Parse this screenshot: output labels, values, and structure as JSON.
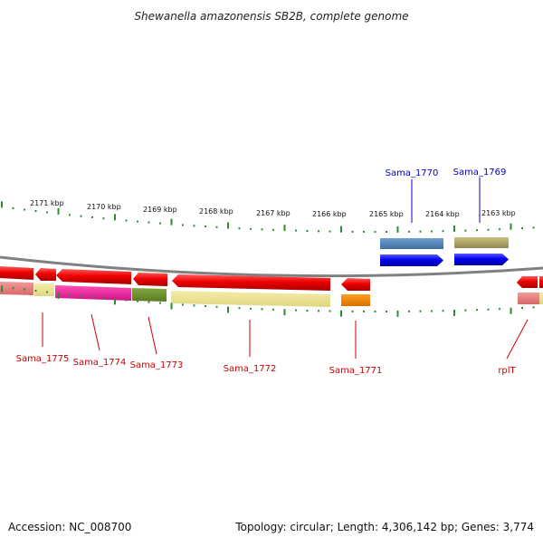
{
  "title": "Shewanella amazonensis SB2B, complete genome",
  "footer": {
    "accession": "Accession: NC_008700",
    "topology": "Topology: circular; Length: 4,306,142 bp; Genes: 3,774"
  },
  "kbp_labels": [
    "2171 kbp",
    "2170 kbp",
    "2169 kbp",
    "2168 kbp",
    "2167 kbp",
    "2166 kbp",
    "2165 kbp",
    "2164 kbp",
    "2163 kbp"
  ],
  "genes_forward": [
    {
      "name": "Sama_1770",
      "color": "#0000ee"
    },
    {
      "name": "Sama_1769",
      "color": "#0000ee"
    }
  ],
  "genes_reverse": [
    {
      "name": "Sama_1775",
      "color": "#cc0000"
    },
    {
      "name": "Sama_1774",
      "color": "#cc0000"
    },
    {
      "name": "Sama_1773",
      "color": "#cc0000"
    },
    {
      "name": "Sama_1772",
      "color": "#cc0000"
    },
    {
      "name": "Sama_1771",
      "color": "#cc0000"
    },
    {
      "name": "rplT",
      "color": "#cc0000"
    }
  ],
  "colors": {
    "forward_arrow": "#0000ff",
    "reverse_arrow": "#ff0000",
    "tick": "#2e8b2e",
    "backbone": "#808080"
  }
}
